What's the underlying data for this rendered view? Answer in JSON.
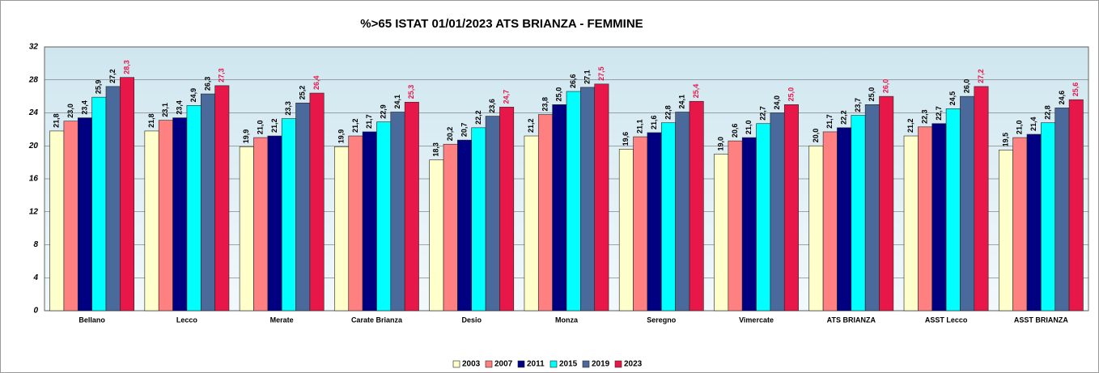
{
  "chart_data": {
    "type": "bar",
    "title": "%>65 ISTAT 01/01/2023 ATS BRIANZA - FEMMINE",
    "categories": [
      "Bellano",
      "Lecco",
      "Merate",
      "Carate Brianza",
      "Desio",
      "Monza",
      "Seregno",
      "Vimercate",
      "ATS BRIANZA",
      "ASST Lecco",
      "ASST BRIANZA"
    ],
    "series": [
      {
        "name": "2003",
        "color": "#ffffcc",
        "values": [
          21.8,
          21.8,
          19.9,
          19.9,
          18.3,
          21.2,
          19.6,
          19.0,
          20.0,
          21.2,
          19.5
        ],
        "value_labels": [
          "21,8",
          "21,8",
          "19,9",
          "19,9",
          "18,3",
          "21,2",
          "19,6",
          "19,0",
          "20,0",
          "21,2",
          "19,5"
        ]
      },
      {
        "name": "2007",
        "color": "#ff8080",
        "values": [
          23.0,
          23.1,
          21.0,
          21.2,
          20.2,
          23.8,
          21.1,
          20.6,
          21.7,
          22.3,
          21.0
        ],
        "value_labels": [
          "23,0",
          "23,1",
          "21,0",
          "21,2",
          "20,2",
          "23,8",
          "21,1",
          "20,6",
          "21,7",
          "22,3",
          "21,0"
        ]
      },
      {
        "name": "2011",
        "color": "#000080",
        "values": [
          23.4,
          23.4,
          21.2,
          21.7,
          20.7,
          25.0,
          21.6,
          21.0,
          22.2,
          22.7,
          21.4
        ],
        "value_labels": [
          "23,4",
          "23,4",
          "21,2",
          "21,7",
          "20,7",
          "25,0",
          "21,6",
          "21,0",
          "22,2",
          "22,7",
          "21,4"
        ]
      },
      {
        "name": "2015",
        "color": "#00ffff",
        "values": [
          25.9,
          24.9,
          23.3,
          22.9,
          22.2,
          26.6,
          22.8,
          22.7,
          23.7,
          24.5,
          22.8
        ],
        "value_labels": [
          "25,9",
          "24,9",
          "23,3",
          "22,9",
          "22,2",
          "26,6",
          "22,8",
          "22,7",
          "23,7",
          "24,5",
          "22,8"
        ]
      },
      {
        "name": "2019",
        "color": "#4a6a9c",
        "values": [
          27.2,
          26.3,
          25.2,
          24.1,
          23.6,
          27.1,
          24.1,
          24.0,
          25.0,
          26.0,
          24.6
        ],
        "value_labels": [
          "27,2",
          "26,3",
          "25,2",
          "24,1",
          "23,6",
          "27,1",
          "24,1",
          "24,0",
          "25,0",
          "26,0",
          "24,6"
        ]
      },
      {
        "name": "2023",
        "color": "#e8174a",
        "values": [
          28.3,
          27.3,
          26.4,
          25.3,
          24.7,
          27.5,
          25.4,
          25.0,
          26.0,
          27.2,
          25.6
        ],
        "value_labels": [
          "28,3",
          "27,3",
          "26,4",
          "25,3",
          "24,7",
          "27,5",
          "25,4",
          "25,0",
          "26,0",
          "27,2",
          "25,6"
        ]
      }
    ],
    "ylim": [
      0,
      32
    ],
    "yticks": [
      0,
      4,
      8,
      12,
      16,
      20,
      24,
      28,
      32
    ],
    "grid": true,
    "legend": "bottom"
  }
}
